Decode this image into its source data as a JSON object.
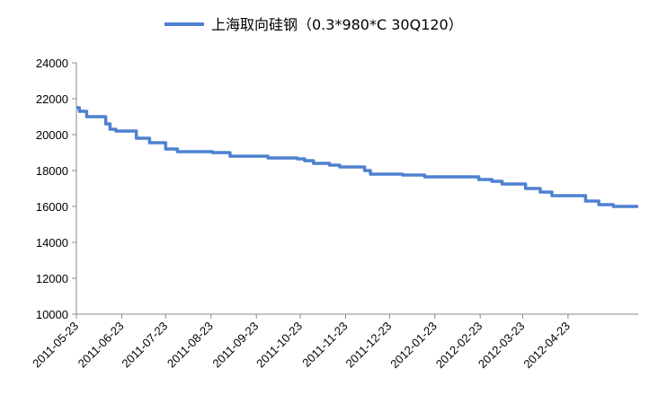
{
  "chart_data": {
    "type": "line",
    "title": "",
    "xlabel": "",
    "ylabel": "",
    "ylim": [
      10000,
      24000
    ],
    "yticks": [
      10000,
      12000,
      14000,
      16000,
      18000,
      20000,
      22000,
      24000
    ],
    "ytick_labels": [
      "10000",
      "12000",
      "14000",
      "16000",
      "18000",
      "20000",
      "22000",
      "24000"
    ],
    "xtick_labels": [
      "2011-05-23",
      "2011-06-23",
      "2011-07-23",
      "2011-08-23",
      "2011-09-23",
      "2011-10-23",
      "2011-11-23",
      "2011-12-23",
      "2012-01-23",
      "2012-02-23",
      "2012-03-23",
      "2012-04-23"
    ],
    "grid": false,
    "legend": "top",
    "series": [
      {
        "name": "上海取向硅钢（0.3*980*C 30Q120）",
        "color": "#4f81d1",
        "points": [
          [
            "2011-05-23",
            21500
          ],
          [
            "2011-05-25",
            21300
          ],
          [
            "2011-05-30",
            21000
          ],
          [
            "2011-06-12",
            20600
          ],
          [
            "2011-06-15",
            20300
          ],
          [
            "2011-06-19",
            20200
          ],
          [
            "2011-07-03",
            19800
          ],
          [
            "2011-07-12",
            19550
          ],
          [
            "2011-07-23",
            19200
          ],
          [
            "2011-07-31",
            19050
          ],
          [
            "2011-08-24",
            19000
          ],
          [
            "2011-09-05",
            18800
          ],
          [
            "2011-10-01",
            18700
          ],
          [
            "2011-10-21",
            18650
          ],
          [
            "2011-10-26",
            18550
          ],
          [
            "2011-11-01",
            18400
          ],
          [
            "2011-11-12",
            18300
          ],
          [
            "2011-11-19",
            18200
          ],
          [
            "2011-12-06",
            18000
          ],
          [
            "2011-12-10",
            17800
          ],
          [
            "2012-01-01",
            17750
          ],
          [
            "2012-01-16",
            17650
          ],
          [
            "2012-02-22",
            17500
          ],
          [
            "2012-03-02",
            17400
          ],
          [
            "2012-03-09",
            17250
          ],
          [
            "2012-03-25",
            17000
          ],
          [
            "2012-04-04",
            16800
          ],
          [
            "2012-04-12",
            16600
          ],
          [
            "2012-05-05",
            16300
          ],
          [
            "2012-05-14",
            16100
          ],
          [
            "2012-05-24",
            16000
          ],
          [
            "2012-06-10",
            16000
          ]
        ]
      }
    ]
  }
}
